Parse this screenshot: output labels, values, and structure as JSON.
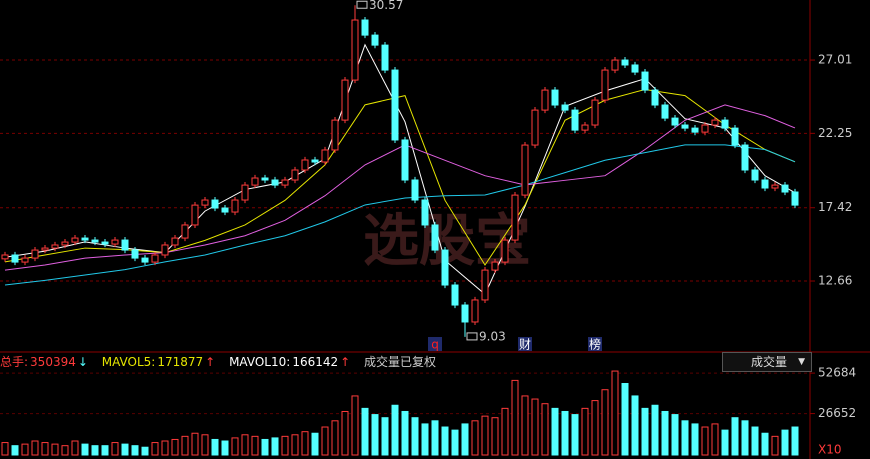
{
  "chart_data": [
    {
      "type": "candlestick",
      "open": [
        14.1,
        14.35,
        13.89,
        14.15,
        14.67,
        14.8,
        15.0,
        15.19,
        15.45,
        15.32,
        15.19,
        15.06,
        15.32,
        14.67,
        14.15,
        13.89,
        14.35,
        15.0,
        15.45,
        16.3,
        17.59,
        17.92,
        17.4,
        17.14,
        17.92,
        18.89,
        19.35,
        19.22,
        18.89,
        19.22,
        19.87,
        20.52,
        20.39,
        21.17,
        23.11,
        25.71,
        29.61,
        28.63,
        27.98,
        26.36,
        21.82,
        19.22,
        17.92,
        16.3,
        14.67,
        12.4,
        11.1,
        10.0,
        11.43,
        13.37,
        13.89,
        15.32,
        18.24,
        21.49,
        23.76,
        25.06,
        24.09,
        23.76,
        22.46,
        22.79,
        24.41,
        26.36,
        27.01,
        26.69,
        26.23,
        25.06,
        24.09,
        23.24,
        22.79,
        22.59,
        22.33,
        22.79,
        23.11,
        22.59,
        21.49,
        19.87,
        19.22,
        18.7,
        18.89,
        18.44
      ],
      "high": [
        14.55,
        14.55,
        14.35,
        14.87,
        15.0,
        15.2,
        15.39,
        15.65,
        15.65,
        15.52,
        15.39,
        15.52,
        15.52,
        14.87,
        14.35,
        14.55,
        15.2,
        15.65,
        16.5,
        17.79,
        18.12,
        18.12,
        17.6,
        18.12,
        19.09,
        19.55,
        19.55,
        19.42,
        19.42,
        20.07,
        20.72,
        20.72,
        21.37,
        23.31,
        25.91,
        30.57,
        29.81,
        28.83,
        28.18,
        26.56,
        22.02,
        19.42,
        18.12,
        16.5,
        14.87,
        12.6,
        11.3,
        11.63,
        13.57,
        14.09,
        15.52,
        18.44,
        21.69,
        23.96,
        25.26,
        25.26,
        24.29,
        23.96,
        22.99,
        24.61,
        26.56,
        27.21,
        27.21,
        26.89,
        26.43,
        25.26,
        24.29,
        23.44,
        22.99,
        22.79,
        22.99,
        23.31,
        23.31,
        22.79,
        21.69,
        20.07,
        19.42,
        19.09,
        19.09,
        18.64
      ],
      "low": [
        13.9,
        13.69,
        13.69,
        13.95,
        14.47,
        14.6,
        14.8,
        14.99,
        15.12,
        14.99,
        14.86,
        14.86,
        14.47,
        13.95,
        13.69,
        13.69,
        14.15,
        14.8,
        15.25,
        16.1,
        17.39,
        17.2,
        16.94,
        16.94,
        17.72,
        18.69,
        19.02,
        18.69,
        18.69,
        19.02,
        19.67,
        20.19,
        20.19,
        20.97,
        22.91,
        25.51,
        28.43,
        27.78,
        26.16,
        21.62,
        19.02,
        17.72,
        16.1,
        14.47,
        12.2,
        10.9,
        9.03,
        9.8,
        11.23,
        13.17,
        13.69,
        15.12,
        18.04,
        21.29,
        23.56,
        23.89,
        23.56,
        22.26,
        22.26,
        22.59,
        24.21,
        26.16,
        26.49,
        26.03,
        24.86,
        23.89,
        23.04,
        22.59,
        22.39,
        22.13,
        22.13,
        22.59,
        22.39,
        21.29,
        19.67,
        19.02,
        18.5,
        18.5,
        18.24,
        17.39
      ],
      "close": [
        14.35,
        13.89,
        14.15,
        14.67,
        14.8,
        15.0,
        15.19,
        15.45,
        15.32,
        15.19,
        15.06,
        15.32,
        14.67,
        14.15,
        13.89,
        14.35,
        15.0,
        15.45,
        16.3,
        17.59,
        17.92,
        17.4,
        17.14,
        17.92,
        18.89,
        19.35,
        19.22,
        18.89,
        19.22,
        19.87,
        20.52,
        20.39,
        21.17,
        23.11,
        25.71,
        29.61,
        28.63,
        27.98,
        26.36,
        21.82,
        19.22,
        17.92,
        16.3,
        14.67,
        12.4,
        11.1,
        10.0,
        11.43,
        13.37,
        13.89,
        15.32,
        18.24,
        21.49,
        23.76,
        25.06,
        24.09,
        23.76,
        22.46,
        22.79,
        24.41,
        26.36,
        27.01,
        26.69,
        26.23,
        25.06,
        24.09,
        23.24,
        22.79,
        22.59,
        22.33,
        22.79,
        23.11,
        22.59,
        21.49,
        19.87,
        19.22,
        18.7,
        18.89,
        18.44,
        17.59
      ],
      "up_color": "#ff3b3b",
      "down_color": "#54ffff",
      "ylim": [
        8.18,
        30.91
      ],
      "yticks": [
        12.66,
        17.42,
        22.25,
        27.01
      ],
      "grid": true,
      "grid_color": "#7a0000",
      "lines": [
        {
          "color": "#ffffff",
          "x": [
            0,
            4,
            8,
            12,
            16,
            20,
            24,
            28,
            32,
            36,
            40,
            44,
            48,
            52,
            56,
            60,
            64,
            68,
            72,
            76,
            79
          ],
          "values": [
            14.2,
            14.6,
            15.2,
            14.8,
            14.5,
            17.2,
            18.6,
            19.1,
            20.6,
            28.0,
            23.0,
            14.0,
            11.8,
            17.5,
            24.0,
            25.0,
            25.8,
            23.2,
            22.6,
            19.5,
            18.4
          ]
        },
        {
          "color": "#e5e500",
          "x": [
            0,
            4,
            8,
            12,
            16,
            20,
            24,
            28,
            32,
            36,
            40,
            44,
            48,
            52,
            56,
            60,
            64,
            68,
            72,
            76,
            79
          ],
          "values": [
            13.9,
            14.35,
            14.8,
            14.7,
            14.5,
            15.3,
            16.3,
            17.9,
            20.2,
            24.1,
            24.7,
            17.9,
            13.7,
            17.6,
            23.1,
            24.4,
            25.1,
            24.7,
            22.8,
            21.2,
            20.4
          ]
        },
        {
          "color": "#e060e0",
          "x": [
            0,
            4,
            8,
            12,
            16,
            20,
            24,
            28,
            32,
            36,
            40,
            44,
            48,
            52,
            56,
            60,
            64,
            68,
            72,
            76,
            79
          ],
          "values": [
            13.37,
            13.7,
            14.15,
            14.35,
            14.5,
            15.0,
            15.6,
            16.6,
            18.2,
            20.2,
            21.5,
            20.5,
            19.5,
            18.9,
            19.2,
            19.5,
            21.2,
            23.1,
            24.1,
            23.4,
            22.6
          ]
        },
        {
          "color": "#21c8e8",
          "x": [
            0,
            4,
            8,
            12,
            16,
            20,
            24,
            28,
            32,
            36,
            40,
            44,
            48,
            52,
            56,
            60,
            64,
            68,
            72,
            76,
            79
          ],
          "values": [
            12.4,
            12.7,
            13.05,
            13.4,
            13.9,
            14.35,
            15.0,
            15.6,
            16.5,
            17.6,
            18.05,
            18.2,
            18.25,
            18.9,
            19.7,
            20.5,
            21.0,
            21.5,
            21.5,
            21.2,
            20.4
          ]
        }
      ],
      "extreme_labels": [
        {
          "x": 35,
          "value": 30.57
        },
        {
          "x": 46,
          "value": 9.03
        }
      ],
      "events": [
        {
          "x": 43,
          "label": "q",
          "color": "#ff2020"
        },
        {
          "x": 52,
          "label": "财",
          "color": "#ffffff"
        },
        {
          "x": 59,
          "label": "榜",
          "color": "#ffffff"
        }
      ],
      "watermark": "选股宝"
    },
    {
      "type": "bar",
      "values": [
        8000,
        6000,
        7000,
        9000,
        8000,
        7000,
        6000,
        9000,
        7000,
        6000,
        6000,
        8000,
        7000,
        6000,
        5000,
        8000,
        9000,
        10000,
        12000,
        14000,
        13000,
        10000,
        9000,
        11000,
        13000,
        12000,
        10000,
        11000,
        12000,
        13000,
        15000,
        14000,
        18000,
        22000,
        28000,
        38000,
        30000,
        26000,
        24000,
        32000,
        28000,
        24000,
        20000,
        22000,
        18000,
        16000,
        20000,
        22000,
        25000,
        24000,
        30000,
        48000,
        38000,
        36000,
        33000,
        30000,
        28000,
        26000,
        30000,
        35000,
        42000,
        54000,
        46000,
        38000,
        30000,
        32000,
        28000,
        26000,
        22000,
        20000,
        18000,
        20000,
        16000,
        24000,
        22000,
        18000,
        14000,
        12000,
        16000,
        18000
      ],
      "ylim": [
        0,
        57900
      ],
      "yticks": [
        26652,
        52684
      ],
      "unit_label": "X10",
      "total_label": "总手:",
      "total": 350394,
      "mavol5_label": "MAVOL5:",
      "mavol5": 171877,
      "mavol10_label": "MAVOL10:",
      "mavol10": 166142,
      "note": "成交量已复权",
      "selector": "成交量"
    }
  ]
}
